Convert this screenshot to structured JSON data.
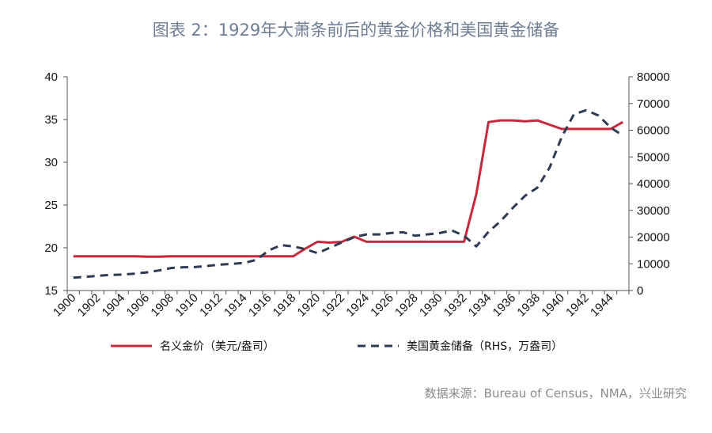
{
  "chart_data": {
    "type": "line",
    "title": "图表 2：1929年大萧条前后的黄金价格和美国黄金储备",
    "source": "数据来源：Bureau of Census，NMA，兴业研究",
    "x": [
      1900,
      1901,
      1902,
      1903,
      1904,
      1905,
      1906,
      1907,
      1908,
      1909,
      1910,
      1911,
      1912,
      1913,
      1914,
      1915,
      1916,
      1917,
      1918,
      1919,
      1920,
      1921,
      1922,
      1923,
      1924,
      1925,
      1926,
      1927,
      1928,
      1929,
      1930,
      1931,
      1932,
      1933,
      1934,
      1935,
      1936,
      1937,
      1938,
      1939,
      1940,
      1941,
      1942,
      1943,
      1944,
      1945
    ],
    "x_tick_labels": [
      "1900",
      "1902",
      "1904",
      "1906",
      "1908",
      "1910",
      "1912",
      "1914",
      "1916",
      "1918",
      "1920",
      "1922",
      "1924",
      "1926",
      "1928",
      "1930",
      "1932",
      "1934",
      "1936",
      "1938",
      "1940",
      "1942",
      "1944"
    ],
    "left_axis": {
      "ylim": [
        15,
        40
      ],
      "ticks": [
        "15",
        "20",
        "25",
        "30",
        "35",
        "40"
      ]
    },
    "right_axis": {
      "ylim": [
        0,
        80000
      ],
      "ticks": [
        "0",
        "10000",
        "20000",
        "30000",
        "40000",
        "50000",
        "60000",
        "70000",
        "80000"
      ]
    },
    "series": [
      {
        "name": "名义金价（美元/盎司）",
        "axis": "left",
        "color": "#c8283c",
        "style": "solid",
        "values": [
          19.0,
          19.0,
          19.0,
          19.0,
          19.0,
          19.0,
          18.95,
          18.95,
          19.0,
          19.0,
          19.0,
          19.0,
          19.0,
          19.0,
          19.0,
          19.0,
          19.0,
          19.0,
          19.0,
          19.9,
          20.7,
          20.6,
          20.7,
          21.3,
          20.7,
          20.7,
          20.7,
          20.7,
          20.7,
          20.7,
          20.7,
          20.7,
          20.7,
          26.3,
          34.7,
          34.9,
          34.9,
          34.8,
          34.9,
          34.4,
          33.9,
          33.9,
          33.9,
          33.9,
          33.9,
          34.7
        ]
      },
      {
        "name": "美国黄金储备（RHS，万盎司）",
        "axis": "right",
        "color": "#2e3b55",
        "style": "dashed",
        "values": [
          4800,
          5100,
          5500,
          5800,
          6000,
          6300,
          6800,
          7500,
          8400,
          8700,
          8800,
          9200,
          9700,
          10000,
          10300,
          11500,
          15000,
          17000,
          16500,
          15500,
          14000,
          16000,
          18000,
          20000,
          21000,
          21000,
          21500,
          21800,
          20500,
          21000,
          21500,
          22500,
          20500,
          16500,
          22000,
          26000,
          31000,
          35500,
          38500,
          46000,
          57500,
          66000,
          67500,
          65500,
          61000,
          58000
        ]
      }
    ],
    "legend_position": "bottom"
  }
}
